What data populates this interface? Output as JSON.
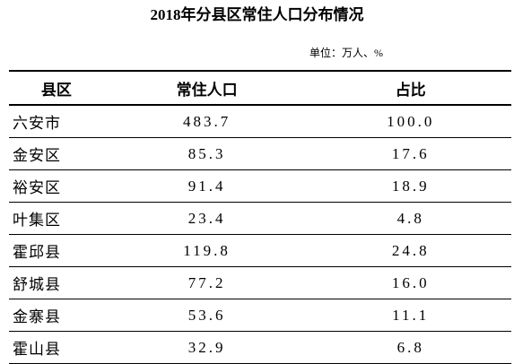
{
  "header": {
    "title": "2018年分县区常住人口分布情况",
    "unit": "单位：万人、%"
  },
  "table": {
    "columns": [
      "县区",
      "常住人口",
      "占比"
    ],
    "rows": [
      [
        "六安市",
        "483.7",
        "100.0"
      ],
      [
        "金安区",
        "85.3",
        "17.6"
      ],
      [
        "裕安区",
        "91.4",
        "18.9"
      ],
      [
        "叶集区",
        "23.4",
        "4.8"
      ],
      [
        "霍邱县",
        "119.8",
        "24.8"
      ],
      [
        "舒城县",
        "77.2",
        "16.0"
      ],
      [
        "金寨县",
        "53.6",
        "11.1"
      ],
      [
        "霍山县",
        "32.9",
        "6.8"
      ]
    ]
  }
}
